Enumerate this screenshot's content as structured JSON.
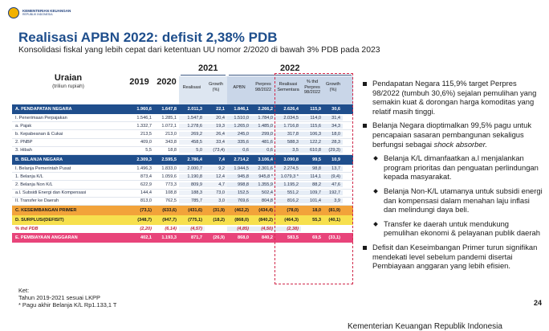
{
  "header": {
    "logo_name": "KEMENTERIAN KEUANGAN",
    "logo_sub": "REPUBLIK INDONESIA",
    "title": "Realisasi APBN 2022: defisit 2,38% PDB",
    "subtitle": "Konsolidasi fiskal yang lebih cepat dari ketentuan UU nomor 2/2020 di bawah 3% PDB pada 2023"
  },
  "table": {
    "group_2021": "2021",
    "group_2022": "2022",
    "uraian": "Uraian",
    "uraian_sub": "(triliun rupiah)",
    "col_2019": "2019",
    "col_2020": "2020",
    "col_real2021": "Realisasi",
    "col_growth2021": "Growth (%)",
    "col_apbn": "APBN",
    "col_perpres": "Perpres 98/2022",
    "col_real2022": "Realisasi Sementara",
    "col_pct": "% thd Perpres 98/2022",
    "col_growth2022": "Growth (%)",
    "rows": [
      {
        "label": "A.  PENDAPATAN NEGARA",
        "v": [
          "1.960,6",
          "1.647,8",
          "2.011,3",
          "22,1",
          "1.846,1",
          "2.266,2",
          "2.626,4",
          "115,9",
          "30,6"
        ]
      },
      {
        "label": "    I.   Penerimaan Perpajakan",
        "v": [
          "1.546,1",
          "1.285,1",
          "1.547,8",
          "20,4",
          "1.510,0",
          "1.784,0",
          "2.034,5",
          "114,0",
          "31,4"
        ]
      },
      {
        "label": "         a. Pajak",
        "v": [
          "1.332,7",
          "1.072,1",
          "1.278,6",
          "19,3",
          "1.265,0",
          "1.485,0",
          "1.716,8",
          "115,6",
          "34,3"
        ]
      },
      {
        "label": "         b. Kepabeanan & Cukai",
        "v": [
          "213,5",
          "213,0",
          "269,2",
          "26,4",
          "245,0",
          "299,0",
          "317,8",
          "106,3",
          "18,0"
        ]
      },
      {
        "label": "    2. PNBP",
        "v": [
          "409,0",
          "343,8",
          "458,5",
          "33,4",
          "335,6",
          "481,6",
          "588,3",
          "122,2",
          "28,3"
        ]
      },
      {
        "label": "    3. Hibah",
        "v": [
          "5,5",
          "18,8",
          "5,0",
          "(73,4)",
          "0,6",
          "0,6",
          "3,5",
          "610,8",
          "(29,3)"
        ]
      },
      {
        "label": "B.  BELANJA NEGARA",
        "v": [
          "2.309,3",
          "2.595,5",
          "2.786,4",
          "7,4",
          "2.714,2",
          "3.106,4",
          "3.090,8",
          "99,5",
          "10,9"
        ]
      },
      {
        "label": "    I.   Belanja Pemerintah Pusat",
        "v": [
          "1.496,3",
          "1.833,0",
          "2.000,7",
          "9,2",
          "1.944,5",
          "2.301,6",
          "2.274,5",
          "98,8",
          "13,7"
        ]
      },
      {
        "label": "         1.  Belanja K/L",
        "v": [
          "873,4",
          "1.059,6",
          "1.190,8",
          "12,4",
          "945,8",
          "945,8 *",
          "1.079,3 *",
          "114,1",
          "(9,4)"
        ]
      },
      {
        "label": "         2.  Belanja Non K/L",
        "v": [
          "622,9",
          "773,3",
          "809,9",
          "4,7",
          "998,8",
          "1.355,9",
          "1.195,2",
          "88,2",
          "47,6"
        ]
      },
      {
        "label": "              a.l. Subsidi Energi dan Kompensasi",
        "v": [
          "144,4",
          "108,8",
          "188,3",
          "73,0",
          "152,5",
          "502,4",
          "551,2",
          "109,7",
          "192,7"
        ]
      },
      {
        "label": "    II.  Transfer ke Daerah",
        "v": [
          "813,0",
          "762,5",
          "785,7",
          "3,0",
          "769,6",
          "804,8",
          "816,2",
          "101,4",
          "3,9"
        ]
      },
      {
        "label": "C.  KESEIMBANGAN PRIMER",
        "v": [
          "(73,1)",
          "(633,6)",
          "(431,6)",
          "(31,9)",
          "(462,2)",
          "(434,4)",
          "(78,0)",
          "18,0",
          "(81,9)"
        ]
      },
      {
        "label": "D.  SURPLUS/(DEFISIT)",
        "v": [
          "(348,7)",
          "(947,7)",
          "(775,1)",
          "(18,2)",
          "(868,0)",
          "(840,2)",
          "(464,3)",
          "55,3",
          "(40,1)"
        ]
      },
      {
        "label": "    % thd PDB",
        "v": [
          "(2,20)",
          "(6,14)",
          "(4,57)",
          "",
          "(4,85)",
          "(4,50)",
          "(2,38)",
          "",
          ""
        ]
      },
      {
        "label": "E.  PEMBIAYAAN ANGGARAN",
        "v": [
          "402,1",
          "1.193,3",
          "871,7",
          "(26,9)",
          "868,0",
          "840,2",
          "583,5",
          "69,5",
          "(33,1)"
        ]
      }
    ]
  },
  "notes": {
    "line1": "Ket:",
    "line2": "Tahun 2019-2021 sesuai LKPP",
    "line3": "* Pagu akhir Belanja K/L Rp1.133,1 T"
  },
  "bullets": [
    "Pendapatan Negara 115,9% target Perpres 98/2022 (tumbuh 30,6%) sejalan pemulihan yang semakin kuat & dorongan harga komoditas yang relatif masih tinggi.",
    "Belanja Negara dioptimalkan 99,5% pagu untuk pencapaian sasaran pembangunan sekaligus berfungsi sebagai",
    "Belanja K/L dimanfaatkan a.l menjalankan program prioritas dan penguatan perlindungan kepada masyarakat.",
    "Belanja Non-K/L utamanya untuk subsidi energi dan kompensasi dalam menahan laju inflasi dan melindungi daya beli.",
    "Transfer ke daerah untuk mendukung pemulihan ekonomi & pelayanan publik daerah",
    "Defisit dan Keseimbangan Primer turun signifikan mendekati level sebelum pandemi disertai Pembiayaan anggaran yang lebih efisien."
  ],
  "bullet2_em": "shock absorber.",
  "page_number": "24",
  "footer": "Kementerian Keuangan Republik Indonesia",
  "colors": {
    "navy": "#1f4e8c",
    "orange": "#f2a33a",
    "yellow": "#f7e04e",
    "pink": "#e8447a",
    "red": "#c0233c"
  }
}
